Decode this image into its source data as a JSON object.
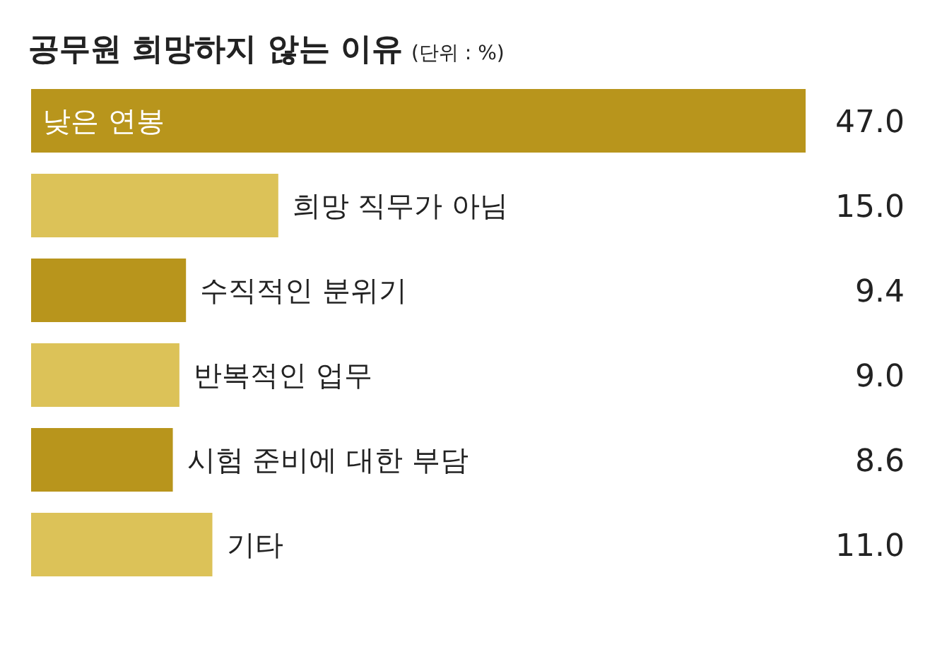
{
  "chart_data": {
    "type": "bar",
    "orientation": "horizontal",
    "title": "공무원 희망하지 않는 이유",
    "subtitle": "(단위 : %)",
    "categories": [
      "낮은 연봉",
      "희망 직무가 아님",
      "수직적인 분위기",
      "반복적인 업무",
      "시험 준비에 대한 부담",
      "기타"
    ],
    "values": [
      47.0,
      15.0,
      9.4,
      9.0,
      8.6,
      11.0
    ],
    "value_labels": [
      "47.0",
      "15.0",
      "9.4",
      "9.0",
      "8.6",
      "11.0"
    ],
    "colors": [
      "#b8951c",
      "#dcc258",
      "#b8951c",
      "#dcc258",
      "#b8951c",
      "#dcc258"
    ]
  }
}
